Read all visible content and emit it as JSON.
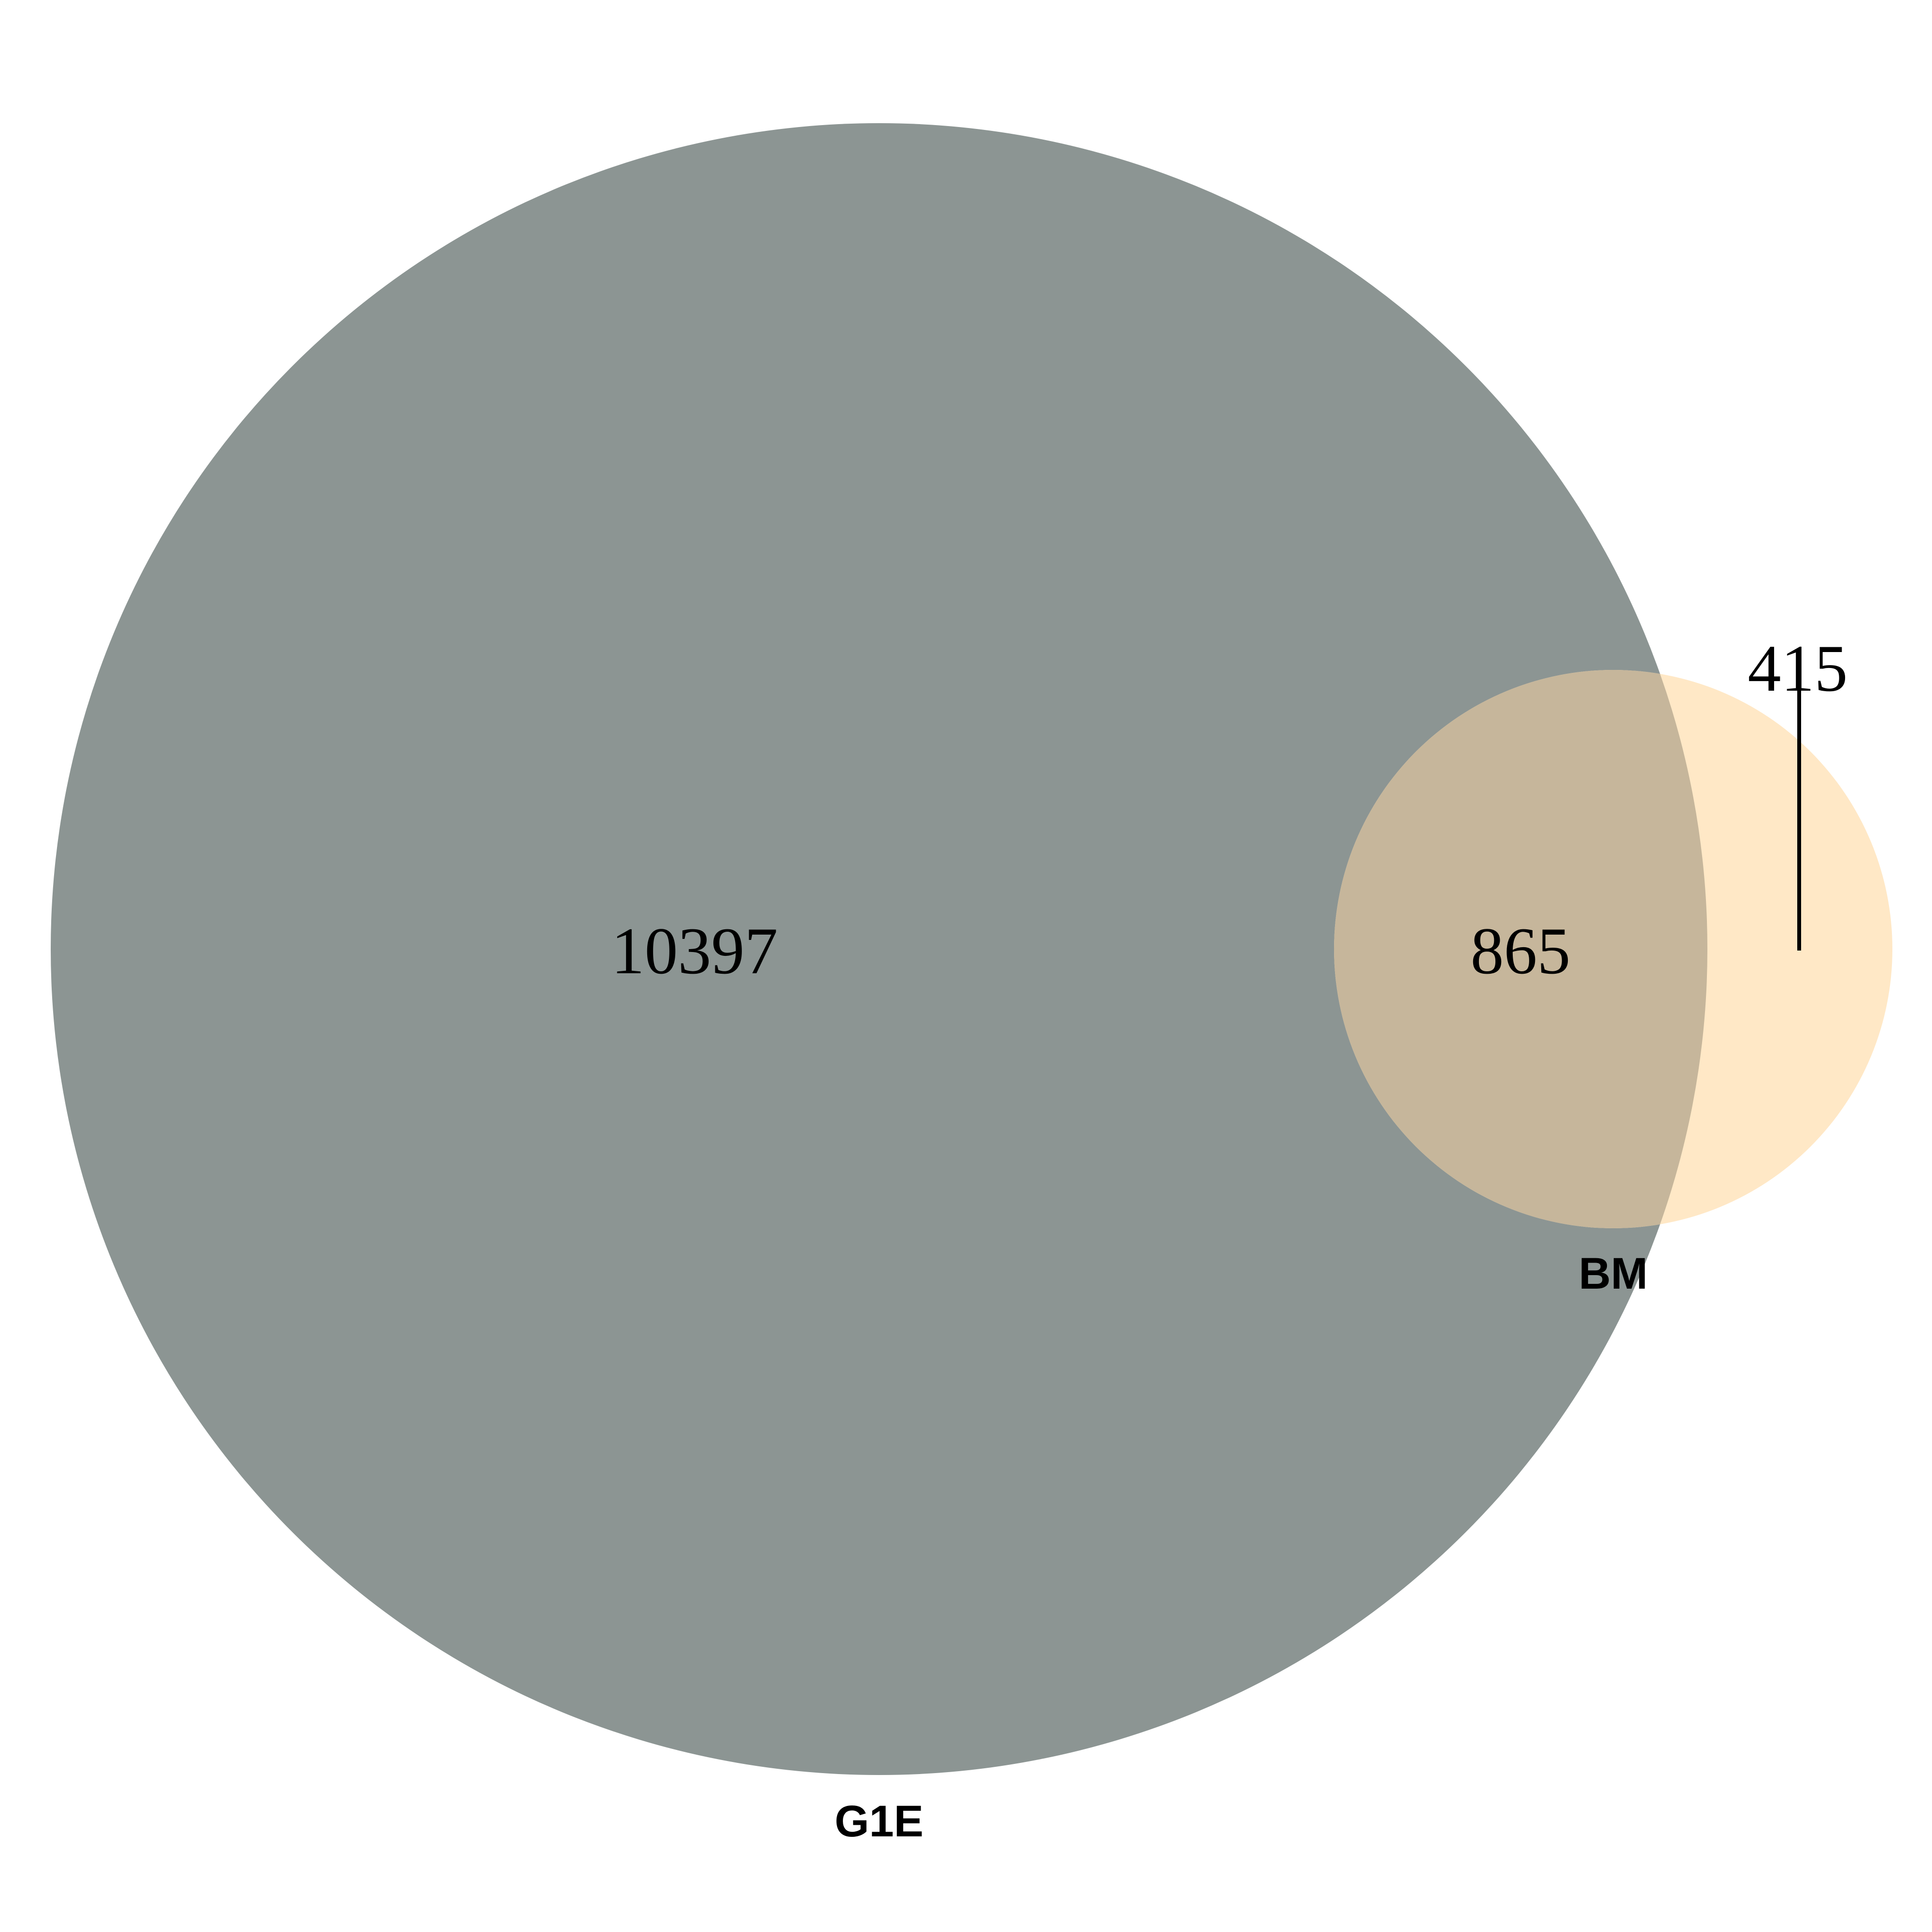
{
  "sets": [
    {
      "name": "G1E",
      "color": "#8c9593"
    },
    {
      "name": "BM",
      "color": "#ffe8c6"
    }
  ],
  "regions": {
    "g1e_only": "10397",
    "intersection": "865",
    "bm_only": "415"
  },
  "colors": {
    "intersection": "#c6b69b",
    "text": "#000000",
    "background": "#ffffff"
  }
}
